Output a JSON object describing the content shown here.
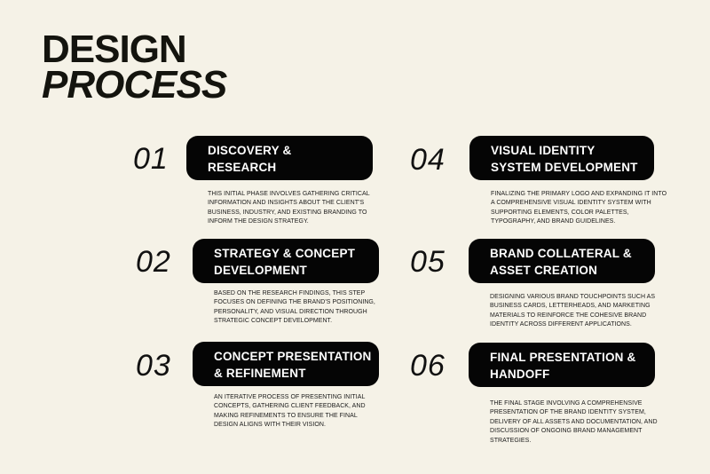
{
  "title": {
    "line1": "DESIGN",
    "line2": "PROCESS"
  },
  "steps": [
    {
      "number": "01",
      "heading": [
        "DISCOVERY &",
        "RESEARCH"
      ],
      "description": "THIS INITIAL PHASE INVOLVES GATHERING CRITICAL INFORMATION AND INSIGHTS ABOUT THE CLIENT'S BUSINESS, INDUSTRY, AND EXISTING BRANDING TO INFORM THE DESIGN STRATEGY."
    },
    {
      "number": "02",
      "heading": [
        "STRATEGY & CONCEPT",
        "DEVELOPMENT"
      ],
      "description": "BASED ON THE RESEARCH FINDINGS, THIS STEP FOCUSES ON DEFINING THE BRAND'S POSITIONING, PERSONALITY, AND VISUAL DIRECTION THROUGH STRATEGIC CONCEPT DEVELOPMENT."
    },
    {
      "number": "03",
      "heading": [
        "CONCEPT PRESENTATION",
        "& REFINEMENT"
      ],
      "description": "AN ITERATIVE PROCESS OF PRESENTING INITIAL CONCEPTS, GATHERING CLIENT FEEDBACK, AND MAKING REFINEMENTS TO ENSURE THE FINAL DESIGN ALIGNS WITH THEIR VISION."
    },
    {
      "number": "04",
      "heading": [
        "VISUAL IDENTITY",
        "SYSTEM DEVELOPMENT"
      ],
      "description": "FINALIZING THE PRIMARY LOGO AND EXPANDING IT INTO A COMPREHENSIVE VISUAL IDENTITY SYSTEM WITH SUPPORTING ELEMENTS, COLOR PALETTES, TYPOGRAPHY, AND BRAND GUIDELINES."
    },
    {
      "number": "05",
      "heading": [
        "BRAND COLLATERAL &",
        "ASSET CREATION"
      ],
      "description": "DESIGNING VARIOUS BRAND TOUCHPOINTS SUCH AS BUSINESS CARDS, LETTERHEADS, AND MARKETING MATERIALS TO REINFORCE THE COHESIVE BRAND IDENTITY ACROSS DIFFERENT APPLICATIONS."
    },
    {
      "number": "06",
      "heading": [
        "FINAL PRESENTATION &",
        "HANDOFF"
      ],
      "description": "THE FINAL STAGE INVOLVING A COMPREHENSIVE PRESENTATION OF THE BRAND IDENTITY SYSTEM, DELIVERY OF ALL ASSETS AND DOCUMENTATION, AND DISCUSSION OF ONGOING BRAND MANAGEMENT STRATEGIES."
    }
  ],
  "colors": {
    "background": "#f5f2e7",
    "pill": "#050505",
    "text": "#111111"
  }
}
